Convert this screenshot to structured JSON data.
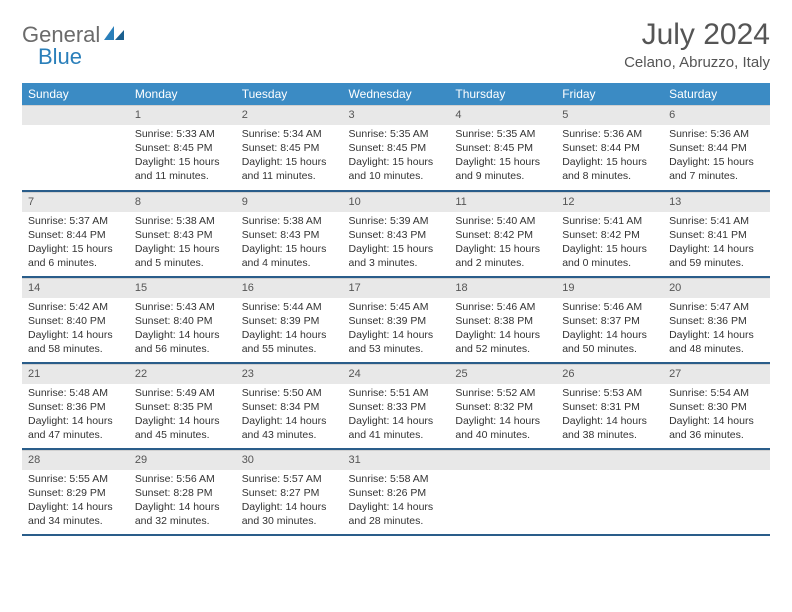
{
  "logo": {
    "part1": "General",
    "part2": "Blue"
  },
  "title": "July 2024",
  "location": "Celano, Abruzzo, Italy",
  "day_headers": [
    "Sunday",
    "Monday",
    "Tuesday",
    "Wednesday",
    "Thursday",
    "Friday",
    "Saturday"
  ],
  "colors": {
    "header_bg": "#3b8bc4",
    "daynum_bg": "#e8e8e8",
    "week_divider": "#2a5d8a",
    "logo_gray": "#6b6b6b",
    "logo_blue": "#2a7fba"
  },
  "weeks": [
    [
      {
        "n": "",
        "lines": []
      },
      {
        "n": "1",
        "lines": [
          "Sunrise: 5:33 AM",
          "Sunset: 8:45 PM",
          "Daylight: 15 hours and 11 minutes."
        ]
      },
      {
        "n": "2",
        "lines": [
          "Sunrise: 5:34 AM",
          "Sunset: 8:45 PM",
          "Daylight: 15 hours and 11 minutes."
        ]
      },
      {
        "n": "3",
        "lines": [
          "Sunrise: 5:35 AM",
          "Sunset: 8:45 PM",
          "Daylight: 15 hours and 10 minutes."
        ]
      },
      {
        "n": "4",
        "lines": [
          "Sunrise: 5:35 AM",
          "Sunset: 8:45 PM",
          "Daylight: 15 hours and 9 minutes."
        ]
      },
      {
        "n": "5",
        "lines": [
          "Sunrise: 5:36 AM",
          "Sunset: 8:44 PM",
          "Daylight: 15 hours and 8 minutes."
        ]
      },
      {
        "n": "6",
        "lines": [
          "Sunrise: 5:36 AM",
          "Sunset: 8:44 PM",
          "Daylight: 15 hours and 7 minutes."
        ]
      }
    ],
    [
      {
        "n": "7",
        "lines": [
          "Sunrise: 5:37 AM",
          "Sunset: 8:44 PM",
          "Daylight: 15 hours and 6 minutes."
        ]
      },
      {
        "n": "8",
        "lines": [
          "Sunrise: 5:38 AM",
          "Sunset: 8:43 PM",
          "Daylight: 15 hours and 5 minutes."
        ]
      },
      {
        "n": "9",
        "lines": [
          "Sunrise: 5:38 AM",
          "Sunset: 8:43 PM",
          "Daylight: 15 hours and 4 minutes."
        ]
      },
      {
        "n": "10",
        "lines": [
          "Sunrise: 5:39 AM",
          "Sunset: 8:43 PM",
          "Daylight: 15 hours and 3 minutes."
        ]
      },
      {
        "n": "11",
        "lines": [
          "Sunrise: 5:40 AM",
          "Sunset: 8:42 PM",
          "Daylight: 15 hours and 2 minutes."
        ]
      },
      {
        "n": "12",
        "lines": [
          "Sunrise: 5:41 AM",
          "Sunset: 8:42 PM",
          "Daylight: 15 hours and 0 minutes."
        ]
      },
      {
        "n": "13",
        "lines": [
          "Sunrise: 5:41 AM",
          "Sunset: 8:41 PM",
          "Daylight: 14 hours and 59 minutes."
        ]
      }
    ],
    [
      {
        "n": "14",
        "lines": [
          "Sunrise: 5:42 AM",
          "Sunset: 8:40 PM",
          "Daylight: 14 hours and 58 minutes."
        ]
      },
      {
        "n": "15",
        "lines": [
          "Sunrise: 5:43 AM",
          "Sunset: 8:40 PM",
          "Daylight: 14 hours and 56 minutes."
        ]
      },
      {
        "n": "16",
        "lines": [
          "Sunrise: 5:44 AM",
          "Sunset: 8:39 PM",
          "Daylight: 14 hours and 55 minutes."
        ]
      },
      {
        "n": "17",
        "lines": [
          "Sunrise: 5:45 AM",
          "Sunset: 8:39 PM",
          "Daylight: 14 hours and 53 minutes."
        ]
      },
      {
        "n": "18",
        "lines": [
          "Sunrise: 5:46 AM",
          "Sunset: 8:38 PM",
          "Daylight: 14 hours and 52 minutes."
        ]
      },
      {
        "n": "19",
        "lines": [
          "Sunrise: 5:46 AM",
          "Sunset: 8:37 PM",
          "Daylight: 14 hours and 50 minutes."
        ]
      },
      {
        "n": "20",
        "lines": [
          "Sunrise: 5:47 AM",
          "Sunset: 8:36 PM",
          "Daylight: 14 hours and 48 minutes."
        ]
      }
    ],
    [
      {
        "n": "21",
        "lines": [
          "Sunrise: 5:48 AM",
          "Sunset: 8:36 PM",
          "Daylight: 14 hours and 47 minutes."
        ]
      },
      {
        "n": "22",
        "lines": [
          "Sunrise: 5:49 AM",
          "Sunset: 8:35 PM",
          "Daylight: 14 hours and 45 minutes."
        ]
      },
      {
        "n": "23",
        "lines": [
          "Sunrise: 5:50 AM",
          "Sunset: 8:34 PM",
          "Daylight: 14 hours and 43 minutes."
        ]
      },
      {
        "n": "24",
        "lines": [
          "Sunrise: 5:51 AM",
          "Sunset: 8:33 PM",
          "Daylight: 14 hours and 41 minutes."
        ]
      },
      {
        "n": "25",
        "lines": [
          "Sunrise: 5:52 AM",
          "Sunset: 8:32 PM",
          "Daylight: 14 hours and 40 minutes."
        ]
      },
      {
        "n": "26",
        "lines": [
          "Sunrise: 5:53 AM",
          "Sunset: 8:31 PM",
          "Daylight: 14 hours and 38 minutes."
        ]
      },
      {
        "n": "27",
        "lines": [
          "Sunrise: 5:54 AM",
          "Sunset: 8:30 PM",
          "Daylight: 14 hours and 36 minutes."
        ]
      }
    ],
    [
      {
        "n": "28",
        "lines": [
          "Sunrise: 5:55 AM",
          "Sunset: 8:29 PM",
          "Daylight: 14 hours and 34 minutes."
        ]
      },
      {
        "n": "29",
        "lines": [
          "Sunrise: 5:56 AM",
          "Sunset: 8:28 PM",
          "Daylight: 14 hours and 32 minutes."
        ]
      },
      {
        "n": "30",
        "lines": [
          "Sunrise: 5:57 AM",
          "Sunset: 8:27 PM",
          "Daylight: 14 hours and 30 minutes."
        ]
      },
      {
        "n": "31",
        "lines": [
          "Sunrise: 5:58 AM",
          "Sunset: 8:26 PM",
          "Daylight: 14 hours and 28 minutes."
        ]
      },
      {
        "n": "",
        "lines": []
      },
      {
        "n": "",
        "lines": []
      },
      {
        "n": "",
        "lines": []
      }
    ]
  ]
}
